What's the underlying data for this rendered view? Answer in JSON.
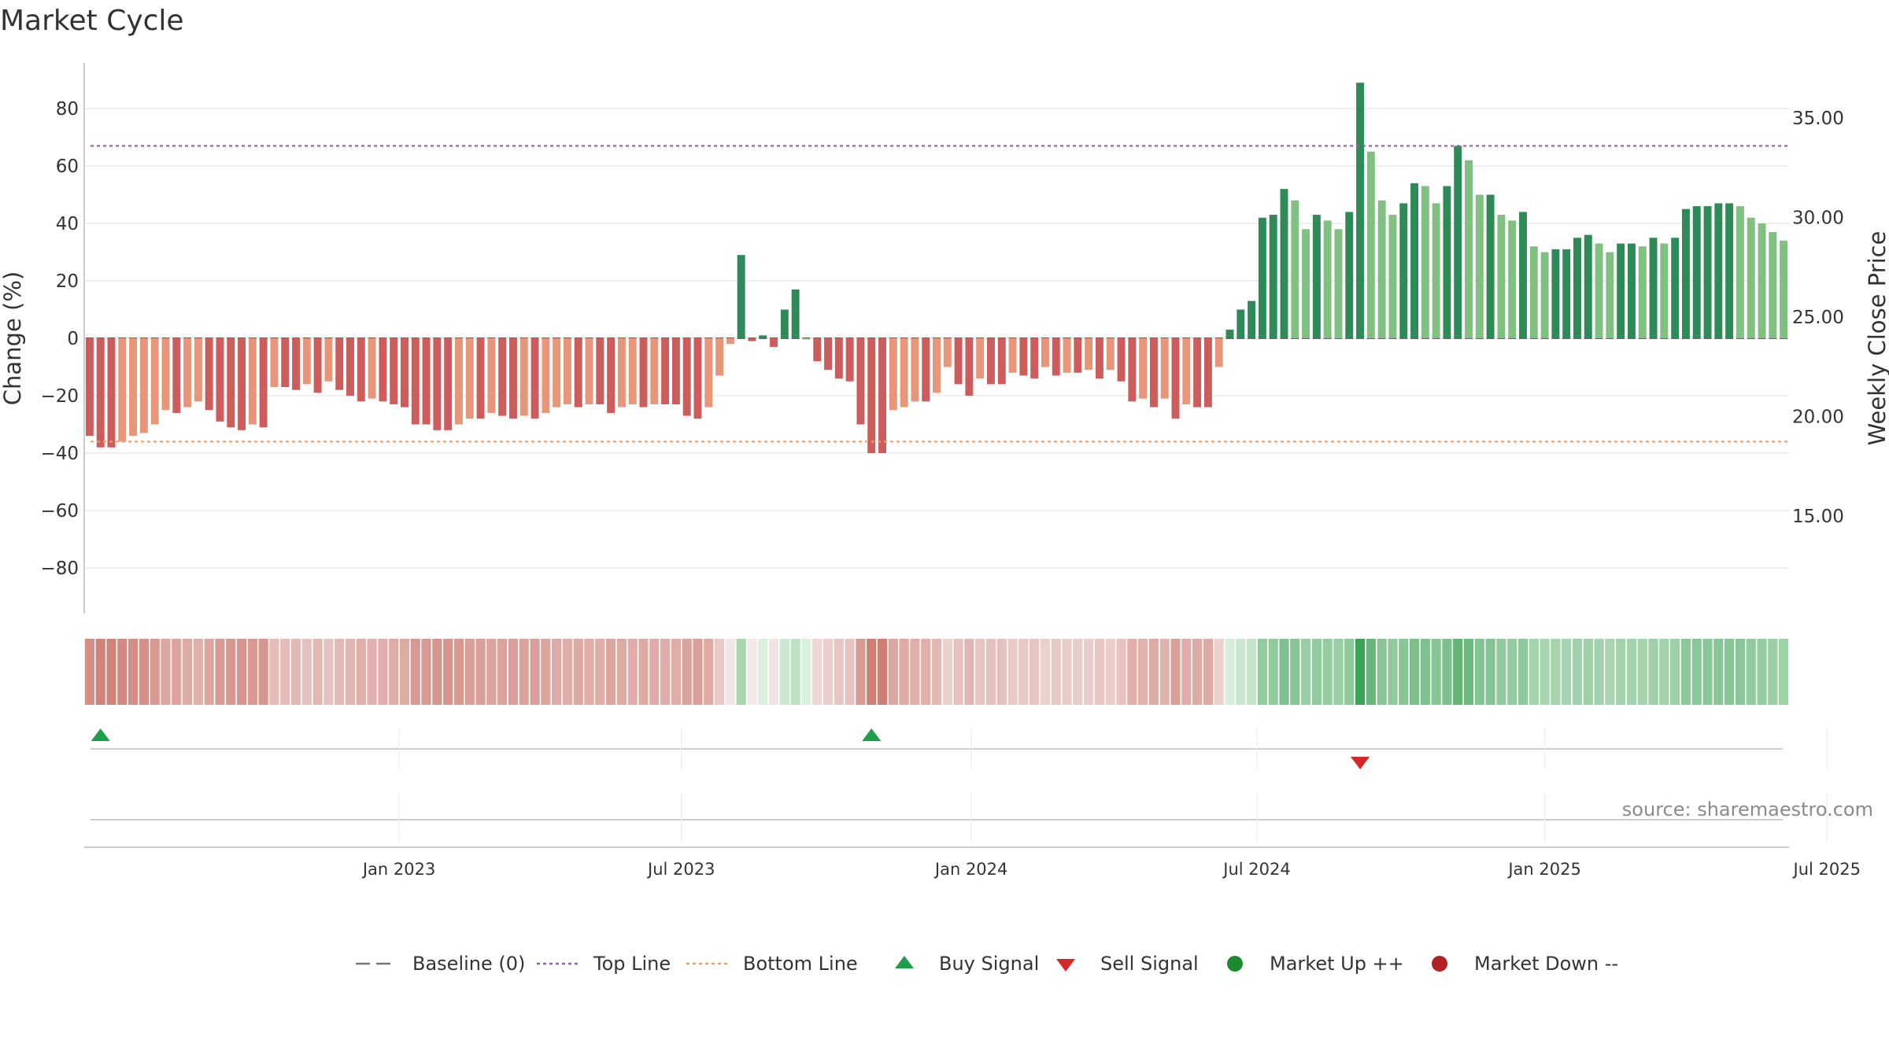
{
  "title": "Market Cycle",
  "source": "source: sharemaestro.com",
  "chart_data": {
    "type": "bar",
    "y_left": {
      "label": "Change (%)",
      "ticks": [
        "80",
        "60",
        "40",
        "20",
        "0",
        "−20",
        "−40",
        "−60",
        "−80"
      ],
      "tick_values": [
        80,
        60,
        40,
        20,
        0,
        -20,
        -40,
        -60,
        -80
      ],
      "range": [
        -96,
        96
      ]
    },
    "y_right": {
      "label": "Weekly Close Price",
      "ticks": [
        "35.00",
        "30.00",
        "25.00",
        "20.00",
        "15.00"
      ],
      "tick_values": [
        35,
        30,
        25,
        20,
        15
      ]
    },
    "x_ticks": [
      {
        "label": "Jan 2023",
        "week": 29
      },
      {
        "label": "Jul 2023",
        "week": 55
      },
      {
        "label": "Jan 2024",
        "week": 81.7
      },
      {
        "label": "Jul 2024",
        "week": 108
      },
      {
        "label": "Jan 2025",
        "week": 134.5
      },
      {
        "label": "Jul 2025",
        "week": 160.5
      }
    ],
    "reference_lines": [
      {
        "name": "Top Line",
        "value": 67,
        "color": "#9b59b6"
      },
      {
        "name": "Bottom Line",
        "value": -36,
        "color": "#e8a26a"
      }
    ],
    "values": [
      -34,
      -38,
      -38,
      -36,
      -34,
      -33,
      -30,
      -25,
      -26,
      -24,
      -22,
      -25,
      -29,
      -31,
      -32,
      -30,
      -31,
      -17,
      -17,
      -18,
      -16,
      -19,
      -15,
      -18,
      -20,
      -22,
      -21,
      -22,
      -23,
      -24,
      -30,
      -30,
      -32,
      -32,
      -30,
      -28,
      -28,
      -26,
      -27,
      -28,
      -27,
      -28,
      -26,
      -24,
      -23,
      -24,
      -23,
      -23,
      -26,
      -24,
      -23,
      -24,
      -23,
      -23,
      -23,
      -27,
      -28,
      -24,
      -13,
      -2,
      29,
      -1,
      1,
      -3,
      10,
      17,
      0,
      -8,
      -11,
      -14,
      -15,
      -30,
      -40,
      -40,
      -25,
      -24,
      -22,
      -22,
      -19,
      -10,
      -16,
      -20,
      -14,
      -16,
      -16,
      -12,
      -13,
      -14,
      -10,
      -13,
      -12,
      -12,
      -11,
      -14,
      -11,
      -15,
      -22,
      -21,
      -24,
      -21,
      -28,
      -23,
      -24,
      -24,
      -10,
      3,
      10,
      13,
      42,
      43,
      52,
      48,
      38,
      43,
      41,
      38,
      44,
      89,
      65,
      48,
      43,
      47,
      54,
      53,
      47,
      53,
      67,
      62,
      50,
      50,
      43,
      41,
      44,
      32,
      30,
      31,
      31,
      35,
      36,
      33,
      30,
      33,
      33,
      32,
      35,
      33,
      35,
      45,
      46,
      46,
      47,
      47,
      46,
      42,
      40,
      37,
      34
    ],
    "legend": [
      {
        "name": "Baseline (0)",
        "marker": "dash",
        "color": "#777777"
      },
      {
        "name": "Top Line",
        "marker": "dotted",
        "color": "#9b59b6"
      },
      {
        "name": "Bottom Line",
        "marker": "dotted",
        "color": "#e8a26a"
      },
      {
        "name": "Buy Signal",
        "marker": "triangle-up",
        "color": "#1e9e48"
      },
      {
        "name": "Sell Signal",
        "marker": "triangle-down",
        "color": "#d62728"
      },
      {
        "name": "Market Up ++",
        "marker": "circle",
        "color": "#1e8a2e"
      },
      {
        "name": "Market Down --",
        "marker": "circle",
        "color": "#b22222"
      }
    ],
    "signals": [
      {
        "type": "buy",
        "week": 1
      },
      {
        "type": "buy",
        "week": 72
      },
      {
        "type": "sell",
        "week": 117
      }
    ],
    "colors": {
      "strong_up": "#2e8b57",
      "weak_up": "#80c080",
      "strong_down": "#cd5c5c",
      "weak_down": "#e8967a"
    }
  }
}
